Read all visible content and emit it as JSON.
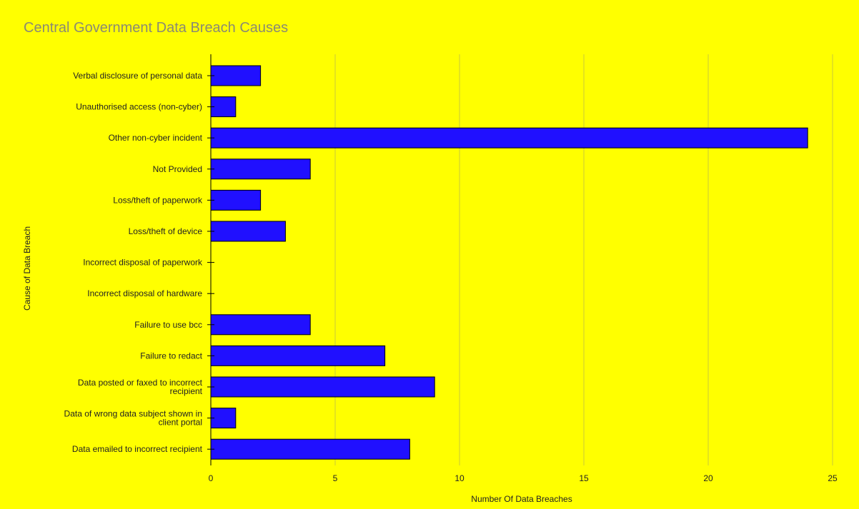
{
  "chart_data": {
    "type": "bar",
    "orientation": "horizontal",
    "title": "Central Government Data Breach Causes",
    "xlabel": "Number Of Data Breaches",
    "ylabel": "Cause of Data Breach",
    "categories": [
      [
        "Verbal disclosure of personal data"
      ],
      [
        "Unauthorised access (non-cyber)"
      ],
      [
        "Other non-cyber incident"
      ],
      [
        "Not Provided"
      ],
      [
        "Loss/theft of paperwork"
      ],
      [
        "Loss/theft of device"
      ],
      [
        "Incorrect disposal of paperwork"
      ],
      [
        "Incorrect disposal of hardware"
      ],
      [
        "Failure to use bcc"
      ],
      [
        "Failure to redact"
      ],
      [
        "Data posted or faxed to incorrect",
        "recipient"
      ],
      [
        "Data of wrong data subject shown in",
        "client portal"
      ],
      [
        "Data emailed to incorrect recipient"
      ]
    ],
    "values": [
      2,
      1,
      24,
      4,
      2,
      3,
      0,
      0,
      4,
      7,
      9,
      1,
      8
    ],
    "xlim": [
      0,
      25
    ],
    "xticks": [
      0,
      5,
      10,
      15,
      20,
      25
    ],
    "grid": true,
    "colors": {
      "background": "#ffff00",
      "bar": "#2010ff",
      "grid": "#c9c93a",
      "axis": "#000000",
      "title": "#8a8a73"
    }
  }
}
